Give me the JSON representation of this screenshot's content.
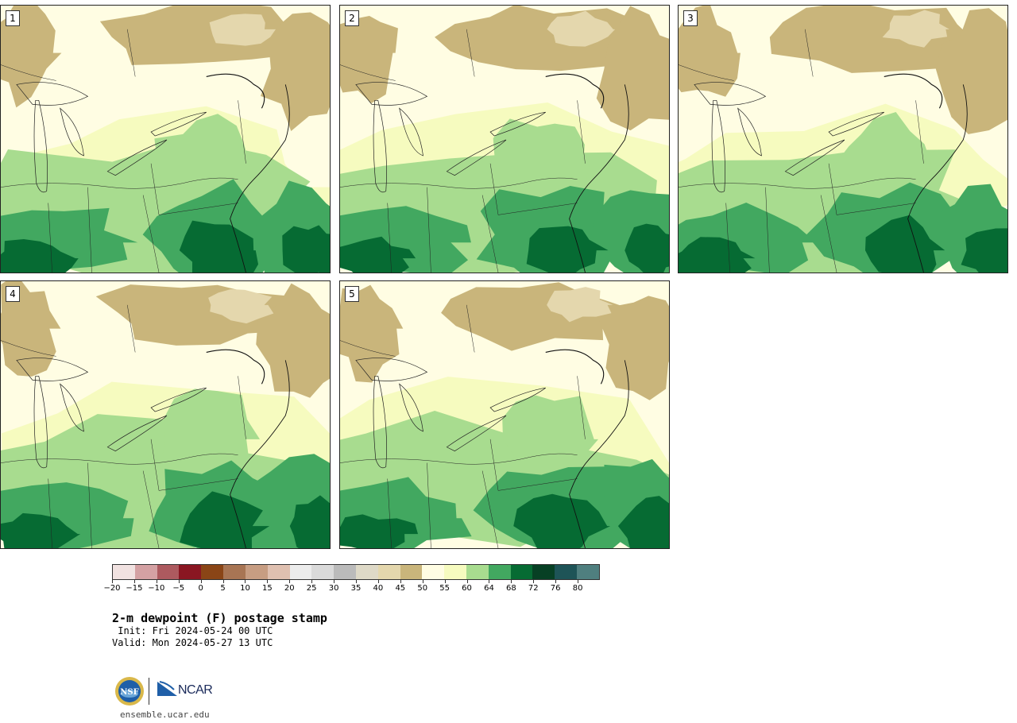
{
  "panels": [
    {
      "id": "1",
      "seed": 11
    },
    {
      "id": "2",
      "seed": 23
    },
    {
      "id": "3",
      "seed": 37
    },
    {
      "id": "4",
      "seed": 41
    },
    {
      "id": "5",
      "seed": 53
    }
  ],
  "colorbar": {
    "colors": [
      "#f1e2e1",
      "#d4a1a3",
      "#ad5a5f",
      "#8a1622",
      "#8a4516",
      "#a87554",
      "#c79d82",
      "#dfc0b0",
      "#ececec",
      "#dadada",
      "#bbbbbb",
      "#ded9c7",
      "#e4d7ad",
      "#c9b57b",
      "#fffde3",
      "#f6fbbf",
      "#a8dc8f",
      "#42a860",
      "#066b33",
      "#074024",
      "#1e5457",
      "#4f7f7f"
    ],
    "tick_labels": [
      "−20",
      "−15",
      "−10",
      "−5",
      "0",
      "5",
      "10",
      "15",
      "20",
      "25",
      "30",
      "35",
      "40",
      "45",
      "50",
      "55",
      "60",
      "64",
      "68",
      "72",
      "76",
      "80"
    ]
  },
  "title": "2-m dewpoint (F) postage stamp",
  "init": " Init: Fri 2024-05-24 00 UTC",
  "valid": "Valid: Mon 2024-05-27 13 UTC",
  "logos": {
    "nsf": "NSF",
    "ncar": "NCAR"
  },
  "site": "ensemble.ucar.edu"
}
